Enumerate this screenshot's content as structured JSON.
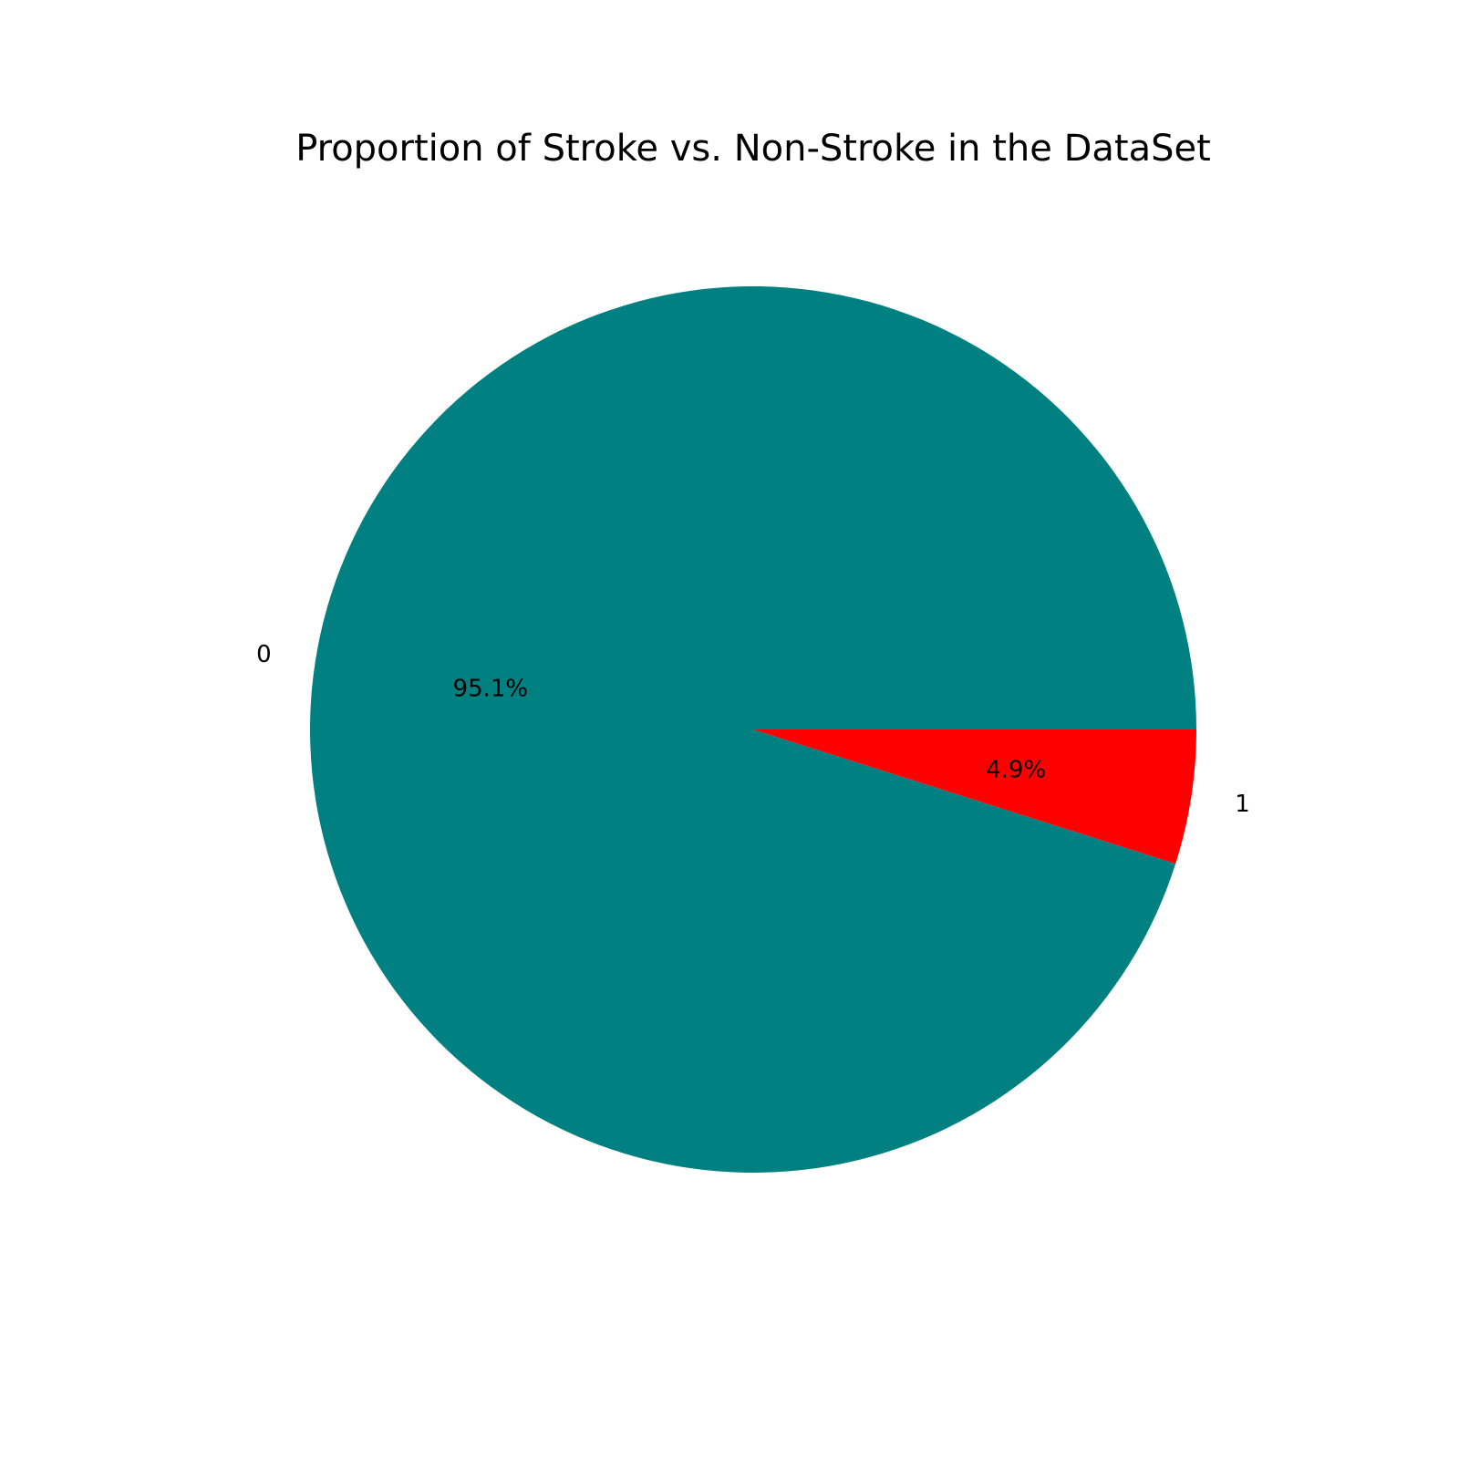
{
  "chart_data": {
    "type": "pie",
    "title": "Proportion of Stroke vs. Non-Stroke in the DataSet",
    "slices": [
      {
        "label": "0",
        "value": 95.1,
        "pct_label": "95.1%",
        "color": "#008080"
      },
      {
        "label": "1",
        "value": 4.9,
        "pct_label": "4.9%",
        "color": "#ff0000"
      }
    ],
    "start_angle_deg": 0,
    "direction": "counterclockwise",
    "legend": "none"
  }
}
